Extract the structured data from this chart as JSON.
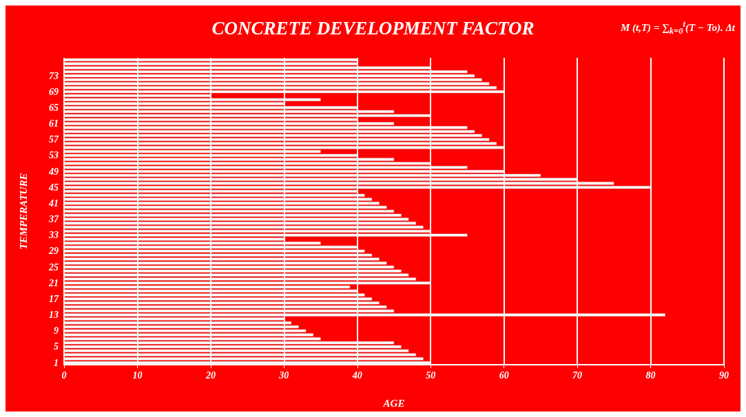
{
  "chart_data": {
    "type": "bar",
    "orientation": "horizontal",
    "title": "CONCRETE DEVELOPMENT FACTOR",
    "annotations": [
      "M (t,T) = ∑$_{k=0}$$^{t}$(T − To). Δt"
    ],
    "xlabel": "AGE",
    "ylabel": "TEMPERATURE",
    "categories": [
      null,
      null,
      null,
      null,
      "73",
      null,
      null,
      null,
      "69",
      null,
      null,
      null,
      "65",
      null,
      null,
      null,
      "61",
      null,
      null,
      null,
      "57",
      null,
      null,
      null,
      "53",
      null,
      null,
      null,
      "49",
      null,
      null,
      null,
      "45",
      null,
      null,
      null,
      "41",
      null,
      null,
      null,
      "37",
      null,
      null,
      null,
      "33",
      null,
      null,
      null,
      "29",
      null,
      null,
      null,
      "25",
      null,
      null,
      null,
      "21",
      null,
      null,
      null,
      "17",
      null,
      null,
      null,
      "13",
      null,
      null,
      null,
      "9",
      null,
      null,
      null,
      "5",
      null,
      null,
      null,
      "1"
    ],
    "values": [
      40,
      40,
      50,
      55,
      56,
      57,
      58,
      59,
      60,
      20,
      35,
      30,
      40,
      45,
      50,
      40,
      45,
      55,
      56,
      57,
      58,
      59,
      60,
      35,
      40,
      45,
      50,
      55,
      60,
      65,
      70,
      75,
      80,
      40,
      41,
      42,
      43,
      44,
      45,
      46,
      47,
      48,
      49,
      50,
      55,
      30,
      35,
      40,
      41,
      42,
      43,
      44,
      45,
      46,
      47,
      48,
      50,
      39,
      40,
      41,
      42,
      43,
      44,
      45,
      82,
      30,
      31,
      32,
      33,
      34,
      35,
      45,
      46,
      47,
      48,
      49,
      50
    ],
    "color": "#ffffff",
    "xlim": [
      0,
      90
    ],
    "xticks": [
      0,
      10,
      20,
      30,
      40,
      50,
      60,
      70,
      80,
      90
    ],
    "grid": "x"
  }
}
